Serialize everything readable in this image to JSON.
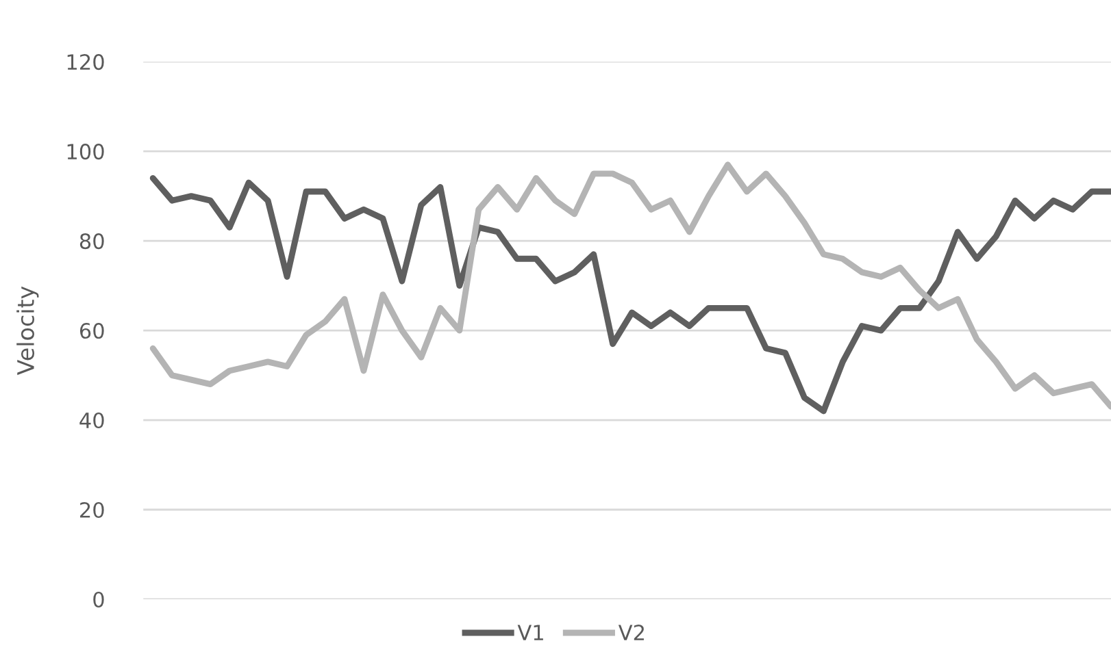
{
  "chart_data": {
    "type": "line",
    "ylabel": "Velocity",
    "categories": [
      null,
      null,
      null,
      null,
      null,
      null,
      null,
      null,
      null,
      null,
      null,
      null,
      null,
      null,
      null,
      null,
      null,
      null,
      null,
      null,
      null,
      null,
      null,
      null,
      null,
      null,
      null,
      null,
      null,
      null,
      null,
      null,
      null,
      null,
      null,
      null,
      null,
      null,
      null,
      null,
      null,
      null,
      null,
      null,
      null,
      null,
      null,
      null,
      null,
      null,
      null
    ],
    "series": [
      {
        "name": "V1",
        "color": "#5f5f5f",
        "values": [
          94,
          89,
          90,
          89,
          83,
          93,
          89,
          72,
          91,
          91,
          85,
          87,
          85,
          71,
          88,
          92,
          70,
          83,
          82,
          76,
          76,
          71,
          73,
          77,
          57,
          64,
          61,
          64,
          61,
          65,
          65,
          65,
          56,
          55,
          45,
          42,
          53,
          61,
          60,
          65,
          65,
          71,
          82,
          76,
          81,
          89,
          85,
          89,
          87,
          91,
          91
        ]
      },
      {
        "name": "V2",
        "color": "#b4b4b4",
        "values": [
          56,
          50,
          49,
          48,
          51,
          52,
          53,
          52,
          59,
          62,
          67,
          51,
          68,
          60,
          54,
          65,
          60,
          87,
          92,
          87,
          94,
          89,
          86,
          95,
          95,
          93,
          87,
          89,
          82,
          90,
          97,
          91,
          95,
          90,
          84,
          77,
          76,
          73,
          72,
          74,
          69,
          65,
          67,
          58,
          53,
          47,
          50,
          46,
          47,
          48,
          43
        ]
      }
    ],
    "ylim": [
      0,
      120
    ],
    "yticks": [
      0,
      20,
      40,
      60,
      80,
      100,
      120
    ],
    "grid": "y",
    "legend": "bottom",
    "marker": "none",
    "line_style": "solid"
  }
}
